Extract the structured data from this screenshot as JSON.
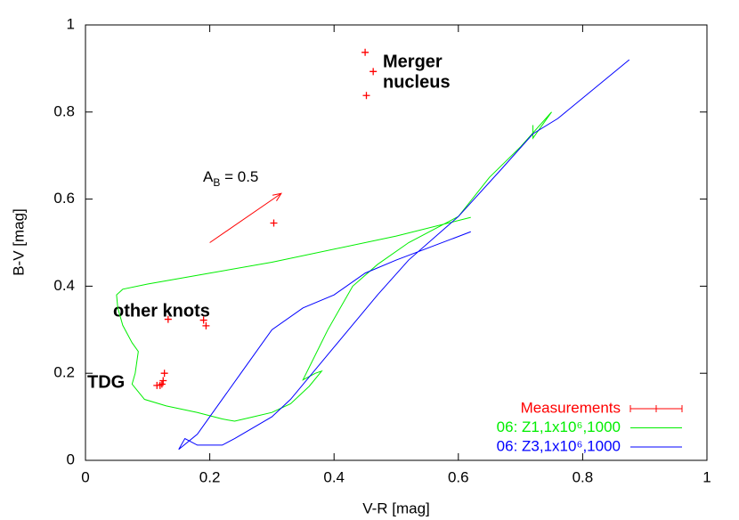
{
  "chart_data": {
    "type": "line",
    "xlabel": "V-R [mag]",
    "ylabel": "B-V [mag]",
    "xlim": [
      0,
      1
    ],
    "ylim": [
      0,
      1
    ],
    "xticks": [
      0,
      0.2,
      0.4,
      0.6,
      0.8,
      1
    ],
    "yticks": [
      0,
      0.2,
      0.4,
      0.6,
      0.8,
      1
    ],
    "series": [
      {
        "name": "Measurements",
        "color": "#ff0000",
        "style": "points",
        "x": [
          0.45,
          0.463,
          0.452,
          0.303,
          0.133,
          0.19,
          0.194,
          0.127,
          0.125,
          0.123,
          0.115,
          0.12
        ],
        "values": [
          0.937,
          0.893,
          0.838,
          0.545,
          0.324,
          0.322,
          0.309,
          0.2,
          0.183,
          0.175,
          0.172,
          0.172
        ]
      },
      {
        "name": "06: Z1,1x10⁶,1000",
        "color": "#00ee00",
        "style": "line",
        "x": [
          0.62,
          0.5,
          0.3,
          0.2,
          0.1,
          0.06,
          0.05,
          0.052,
          0.06,
          0.075,
          0.085,
          0.08,
          0.075,
          0.095,
          0.13,
          0.18,
          0.22,
          0.24,
          0.27,
          0.3,
          0.33,
          0.36,
          0.38,
          0.37,
          0.35,
          0.39,
          0.43,
          0.47,
          0.52,
          0.6,
          0.65,
          0.7,
          0.75,
          0.72,
          0.72
        ],
        "values": [
          0.558,
          0.515,
          0.455,
          0.43,
          0.405,
          0.393,
          0.38,
          0.35,
          0.31,
          0.27,
          0.25,
          0.2,
          0.175,
          0.14,
          0.125,
          0.11,
          0.095,
          0.09,
          0.1,
          0.11,
          0.13,
          0.17,
          0.205,
          0.2,
          0.185,
          0.3,
          0.4,
          0.45,
          0.5,
          0.56,
          0.65,
          0.72,
          0.8,
          0.74,
          0.77
        ]
      },
      {
        "name": "06: Z3,1x10⁶,1000",
        "color": "#0000ff",
        "style": "line",
        "x": [
          0.15,
          0.16,
          0.18,
          0.22,
          0.24,
          0.3,
          0.33,
          0.4,
          0.47,
          0.52,
          0.6,
          0.67,
          0.72,
          0.76,
          0.875,
          null,
          0.15,
          0.18,
          0.2,
          0.25,
          0.3,
          0.35,
          0.4,
          0.45,
          0.5,
          0.62
        ],
        "values": [
          0.025,
          0.05,
          0.035,
          0.035,
          0.05,
          0.1,
          0.14,
          0.26,
          0.38,
          0.46,
          0.56,
          0.67,
          0.75,
          0.785,
          0.92,
          null,
          0.025,
          0.06,
          0.1,
          0.2,
          0.3,
          0.35,
          0.38,
          0.43,
          0.46,
          0.525
        ]
      }
    ],
    "arrow": {
      "x": [
        0.2,
        0.315
      ],
      "values": [
        0.5,
        0.613
      ],
      "label_main": "A",
      "label_sub": "B",
      "label_rest": " = 0.5"
    },
    "annotations": [
      "Merger",
      "nucleus",
      "other knots",
      "TDG"
    ]
  }
}
